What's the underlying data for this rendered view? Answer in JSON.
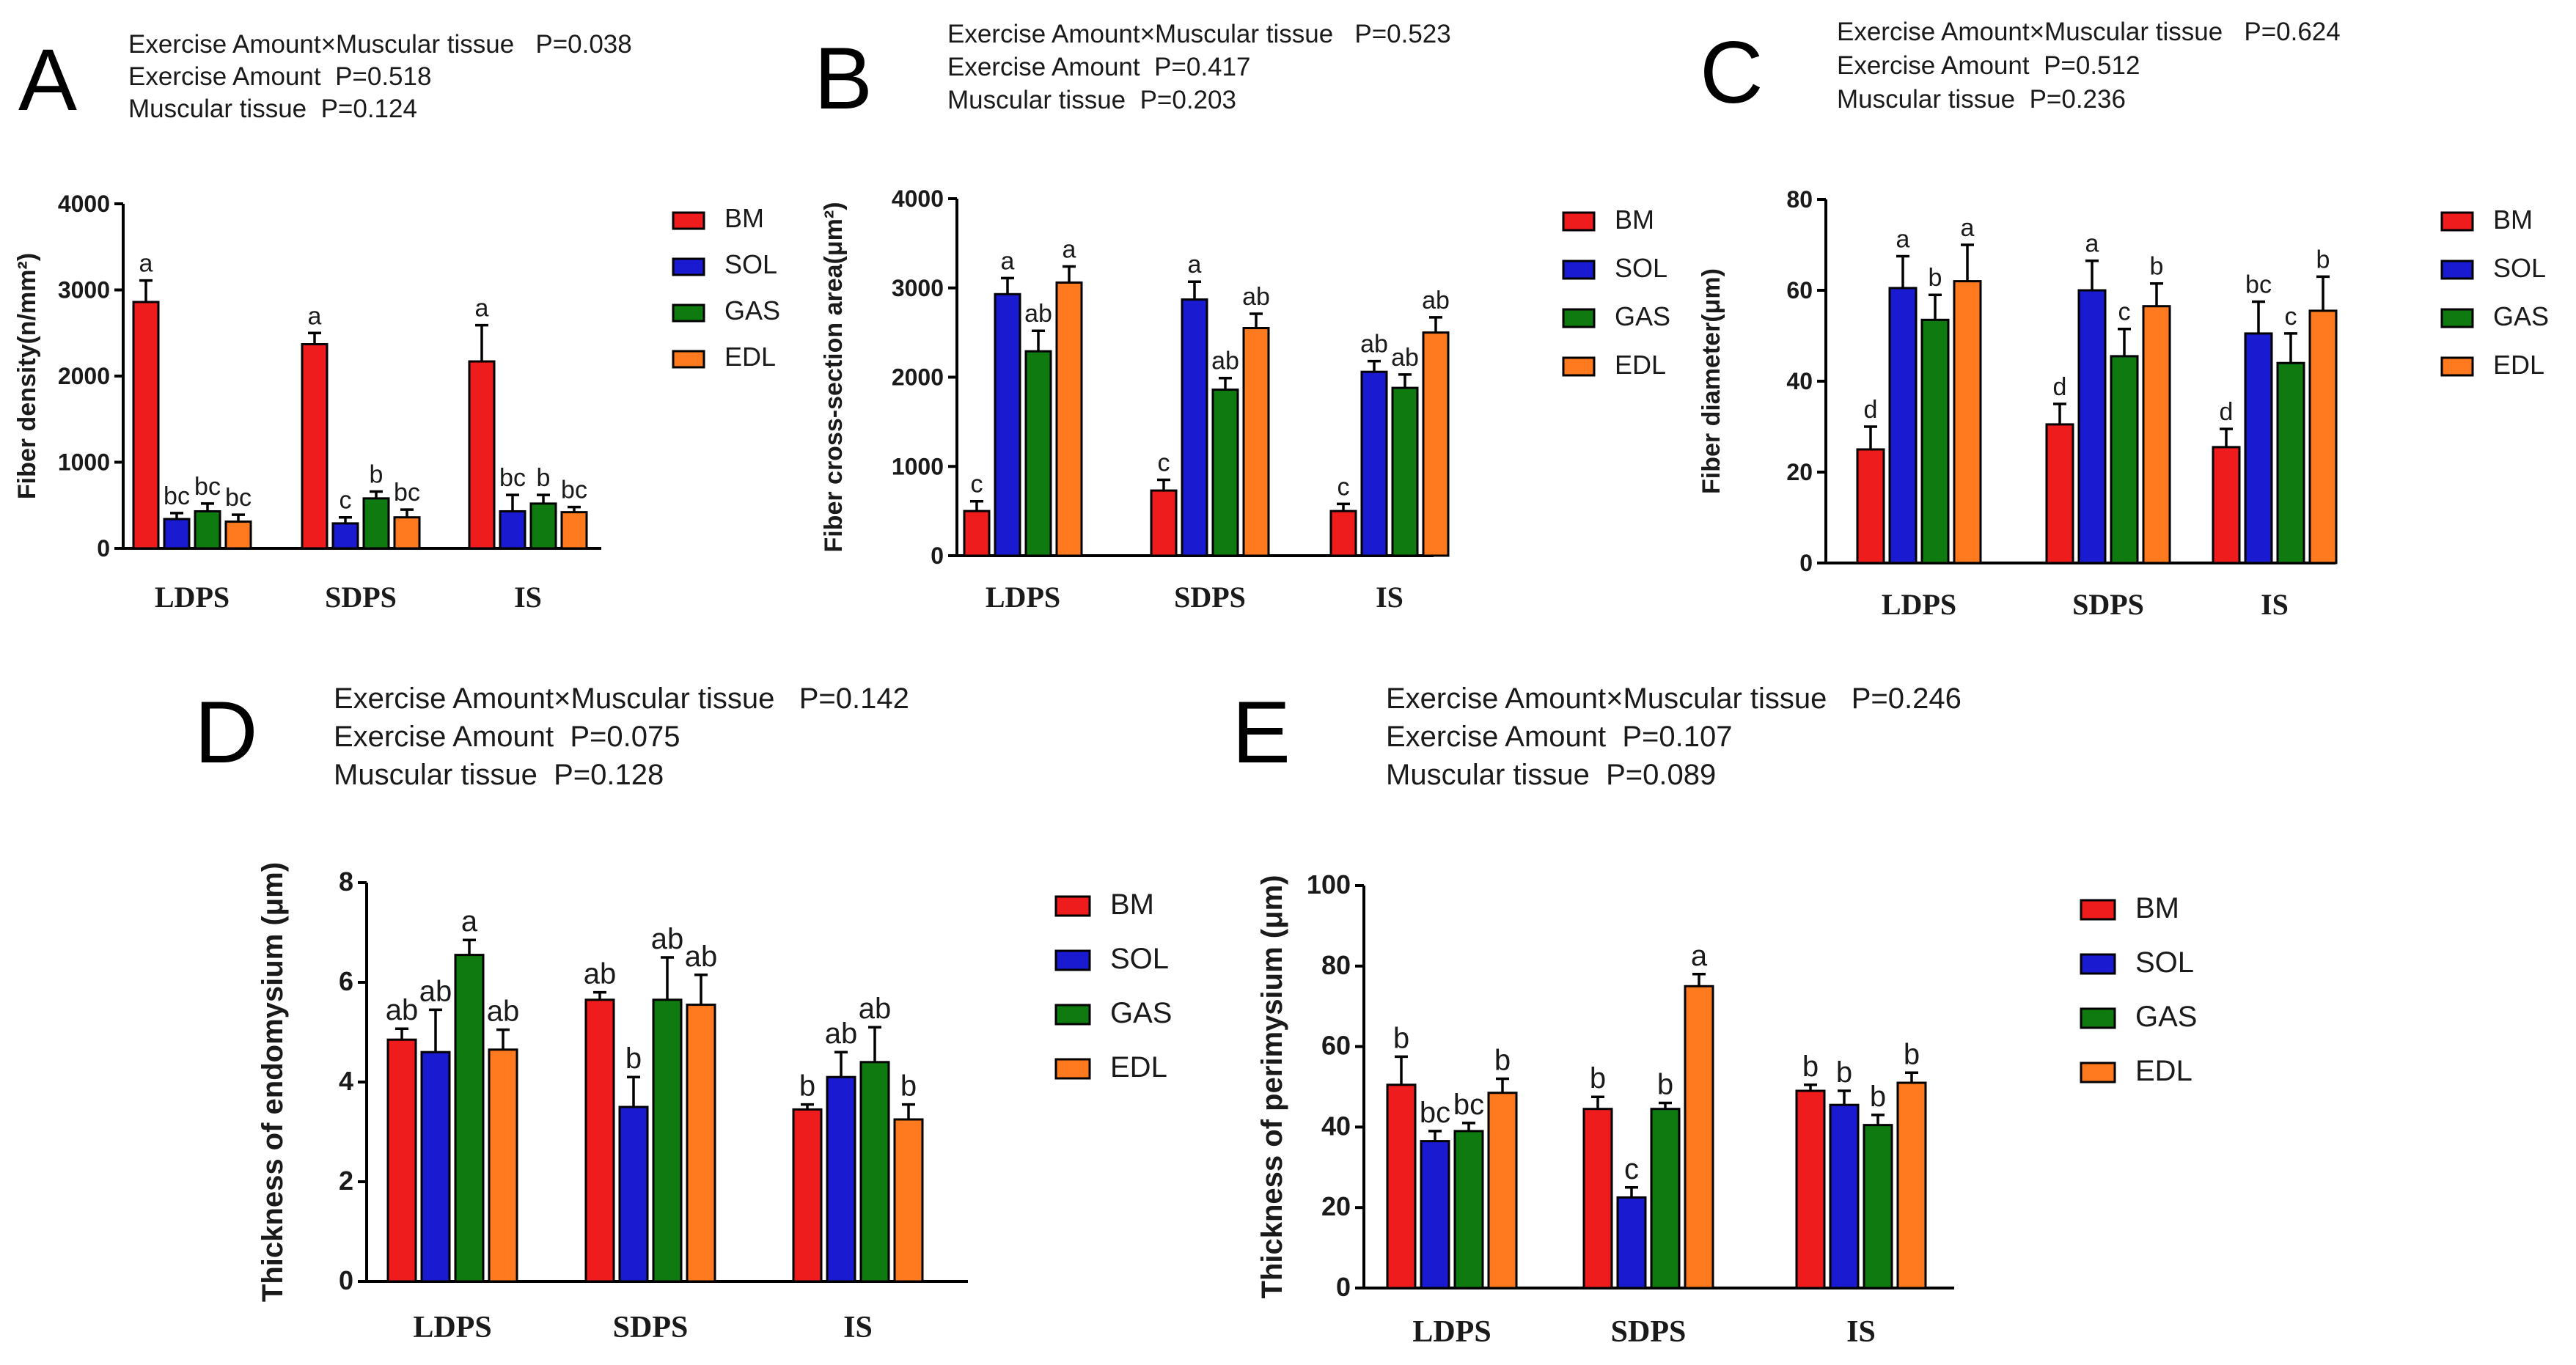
{
  "colors": {
    "BM": "#ee1c1c",
    "SOL": "#1a1ad0",
    "GAS": "#0f7a0f",
    "EDL": "#ff7a1f"
  },
  "chart_data": [
    {
      "type": "bar",
      "panel": "A",
      "stats": [
        "Exercise Amount×Muscular tissue   P=0.038",
        "Exercise Amount  P=0.518",
        "Muscular tissue  P=0.124"
      ],
      "ylabel": "Fiber density(n/mm²)",
      "ylim": [
        0,
        4000
      ],
      "yticks": [
        "0",
        "1000",
        "2000",
        "3000",
        "4000"
      ],
      "categories": [
        "LDPS",
        "SDPS",
        "IS"
      ],
      "legend": [
        "BM",
        "SOL",
        "GAS",
        "EDL"
      ],
      "series": [
        {
          "name": "BM",
          "values": [
            2860,
            2370,
            2170
          ],
          "errors": [
            250,
            130,
            420
          ],
          "letters": [
            "a",
            "a",
            "a"
          ]
        },
        {
          "name": "SOL",
          "values": [
            340,
            290,
            430
          ],
          "errors": [
            70,
            70,
            190
          ],
          "letters": [
            "bc",
            "c",
            "bc"
          ]
        },
        {
          "name": "GAS",
          "values": [
            430,
            580,
            520
          ],
          "errors": [
            90,
            80,
            100
          ],
          "letters": [
            "bc",
            "b",
            "b"
          ]
        },
        {
          "name": "EDL",
          "values": [
            310,
            360,
            420
          ],
          "errors": [
            80,
            90,
            60
          ],
          "letters": [
            "bc",
            "bc",
            "bc"
          ]
        }
      ]
    },
    {
      "type": "bar",
      "panel": "B",
      "stats": [
        "Exercise Amount×Muscular tissue   P=0.523",
        "Exercise Amount  P=0.417",
        "Muscular tissue  P=0.203"
      ],
      "ylabel": "Fiber cross-section area(μm²)",
      "ylim": [
        0,
        4000
      ],
      "yticks": [
        "0",
        "1000",
        "2000",
        "3000",
        "4000"
      ],
      "categories": [
        "LDPS",
        "SDPS",
        "IS"
      ],
      "legend": [
        "BM",
        "SOL",
        "GAS",
        "EDL"
      ],
      "series": [
        {
          "name": "BM",
          "values": [
            500,
            730,
            500
          ],
          "errors": [
            110,
            120,
            80
          ],
          "letters": [
            "c",
            "c",
            "c"
          ]
        },
        {
          "name": "SOL",
          "values": [
            2930,
            2870,
            2060
          ],
          "errors": [
            180,
            200,
            120
          ],
          "letters": [
            "a",
            "a",
            "ab"
          ]
        },
        {
          "name": "GAS",
          "values": [
            2290,
            1860,
            1880
          ],
          "errors": [
            230,
            130,
            150
          ],
          "letters": [
            "ab",
            "ab",
            "ab"
          ]
        },
        {
          "name": "EDL",
          "values": [
            3060,
            2550,
            2500
          ],
          "errors": [
            180,
            160,
            170
          ],
          "letters": [
            "a",
            "ab",
            "ab"
          ]
        }
      ]
    },
    {
      "type": "bar",
      "panel": "C",
      "stats": [
        "Exercise Amount×Muscular tissue   P=0.624",
        "Exercise Amount  P=0.512",
        "Muscular tissue  P=0.236"
      ],
      "ylabel": "Fiber diameter(μm)",
      "ylim": [
        0,
        80
      ],
      "yticks": [
        "0",
        "20",
        "40",
        "60",
        "80"
      ],
      "categories": [
        "LDPS",
        "SDPS",
        "IS"
      ],
      "legend": [
        "BM",
        "SOL",
        "GAS",
        "EDL"
      ],
      "series": [
        {
          "name": "BM",
          "values": [
            25,
            30.5,
            25.5
          ],
          "errors": [
            5,
            4.5,
            4
          ],
          "letters": [
            "d",
            "d",
            "d"
          ]
        },
        {
          "name": "SOL",
          "values": [
            60.5,
            60,
            50.5
          ],
          "errors": [
            7,
            6.5,
            7
          ],
          "letters": [
            "a",
            "a",
            "bc"
          ]
        },
        {
          "name": "GAS",
          "values": [
            53.5,
            45.5,
            44
          ],
          "errors": [
            5.5,
            6,
            6.5
          ],
          "letters": [
            "b",
            "c",
            "c"
          ]
        },
        {
          "name": "EDL",
          "values": [
            62,
            56.5,
            55.5
          ],
          "errors": [
            8,
            5,
            7.5
          ],
          "letters": [
            "a",
            "b",
            "b"
          ]
        }
      ]
    },
    {
      "type": "bar",
      "panel": "D",
      "stats": [
        "Exercise Amount×Muscular tissue   P=0.142",
        "Exercise Amount  P=0.075",
        "Muscular tissue  P=0.128"
      ],
      "ylabel": "Thickness of endomysium (μm)",
      "ylim": [
        0,
        8
      ],
      "yticks": [
        "0",
        "2",
        "4",
        "6",
        "8"
      ],
      "categories": [
        "LDPS",
        "SDPS",
        "IS"
      ],
      "legend": [
        "BM",
        "SOL",
        "GAS",
        "EDL"
      ],
      "series": [
        {
          "name": "BM",
          "values": [
            4.85,
            5.65,
            3.45
          ],
          "errors": [
            0.22,
            0.15,
            0.1
          ],
          "letters": [
            "ab",
            "ab",
            "b"
          ]
        },
        {
          "name": "SOL",
          "values": [
            4.6,
            3.5,
            4.1
          ],
          "errors": [
            0.85,
            0.6,
            0.5
          ],
          "letters": [
            "ab",
            "b",
            "ab"
          ]
        },
        {
          "name": "GAS",
          "values": [
            6.55,
            5.65,
            4.4
          ],
          "errors": [
            0.3,
            0.85,
            0.7
          ],
          "letters": [
            "a",
            "ab",
            "ab"
          ]
        },
        {
          "name": "EDL",
          "values": [
            4.65,
            5.55,
            3.25
          ],
          "errors": [
            0.4,
            0.6,
            0.3
          ],
          "letters": [
            "ab",
            "ab",
            "b"
          ]
        }
      ]
    },
    {
      "type": "bar",
      "panel": "E",
      "stats": [
        "Exercise Amount×Muscular tissue   P=0.246",
        "Exercise Amount  P=0.107",
        "Muscular tissue  P=0.089"
      ],
      "ylabel": "Thickness of perimysium (μm)",
      "ylim": [
        0,
        100
      ],
      "yticks": [
        "0",
        "20",
        "40",
        "60",
        "80",
        "100"
      ],
      "categories": [
        "LDPS",
        "SDPS",
        "IS"
      ],
      "legend": [
        "BM",
        "SOL",
        "GAS",
        "EDL"
      ],
      "series": [
        {
          "name": "BM",
          "values": [
            50.5,
            44.5,
            49
          ],
          "errors": [
            7,
            3,
            1.5
          ],
          "letters": [
            "b",
            "b",
            "b"
          ]
        },
        {
          "name": "SOL",
          "values": [
            36.5,
            22.5,
            45.5
          ],
          "errors": [
            2.5,
            2.5,
            3.5
          ],
          "letters": [
            "bc",
            "c",
            "b"
          ]
        },
        {
          "name": "GAS",
          "values": [
            39,
            44.5,
            40.5
          ],
          "errors": [
            2,
            1.5,
            2.5
          ],
          "letters": [
            "bc",
            "b",
            "b"
          ]
        },
        {
          "name": "EDL",
          "values": [
            48.5,
            75,
            51
          ],
          "errors": [
            3.5,
            3,
            2.5
          ],
          "letters": [
            "b",
            "a",
            "b"
          ]
        }
      ]
    }
  ]
}
